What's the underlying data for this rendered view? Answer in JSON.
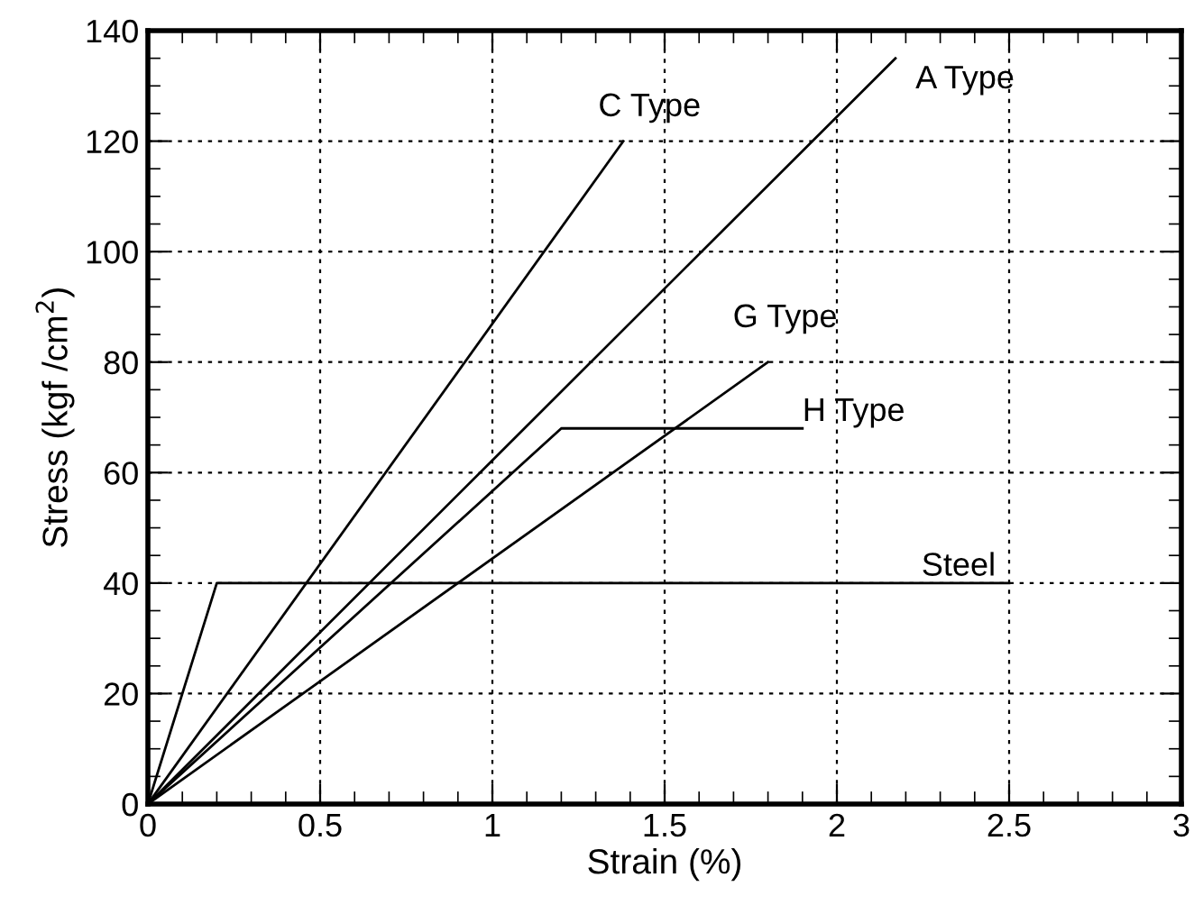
{
  "chart_data": {
    "type": "line",
    "xlabel": "Strain (%)",
    "ylabel": "Stress (kgf /cm$^{2}$)",
    "xlim": [
      0,
      3
    ],
    "ylim": [
      0,
      140
    ],
    "xticks": [
      0,
      0.5,
      1,
      1.5,
      2,
      2.5,
      3
    ],
    "yticks": [
      0,
      20,
      40,
      60,
      80,
      100,
      120,
      140
    ],
    "grid": true,
    "marker": "none",
    "line_style": "solid",
    "series": [
      {
        "color": "#000000",
        "x": [
          0,
          1.38
        ],
        "values": [
          0,
          120
        ]
      },
      {
        "color": "#000000",
        "x": [
          0,
          2.17
        ],
        "values": [
          0,
          135
        ]
      },
      {
        "color": "#000000",
        "x": [
          0,
          1.8
        ],
        "values": [
          0,
          80
        ]
      },
      {
        "color": "#000000",
        "x": [
          0,
          1.2,
          1.9
        ],
        "values": [
          0,
          68,
          68
        ]
      },
      {
        "color": "#000000",
        "x": [
          0,
          0.2,
          2.5
        ],
        "values": [
          0,
          40,
          40
        ]
      }
    ],
    "annotations": [
      {
        "text": "C Type",
        "x": 1.38,
        "y": 120
      },
      {
        "text": "A Type",
        "x": 2.17,
        "y": 135
      },
      {
        "text": "G Type",
        "x": 1.8,
        "y": 80
      },
      {
        "text": "H Type",
        "x": 1.9,
        "y": 68
      },
      {
        "text": "Steel",
        "x": 2.5,
        "y": 40
      }
    ]
  }
}
